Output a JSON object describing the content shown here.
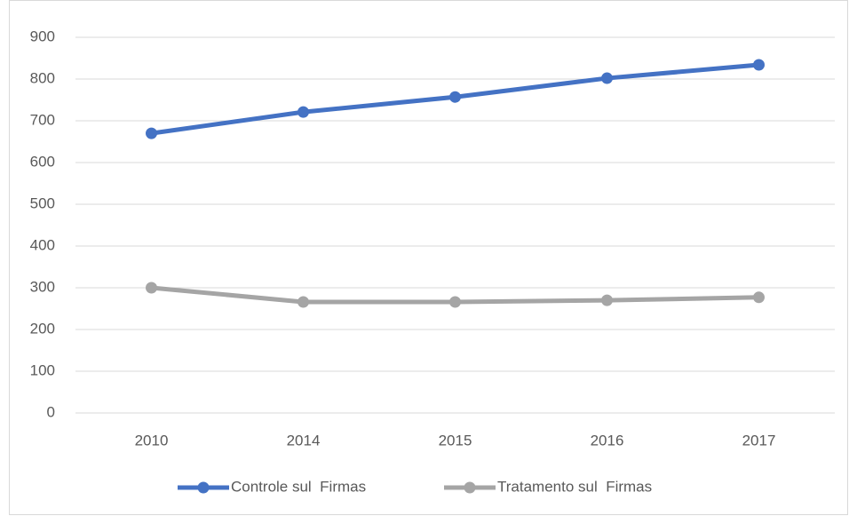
{
  "chart_data": {
    "type": "line",
    "categories": [
      "2010",
      "2014",
      "2015",
      "2016",
      "2017"
    ],
    "series": [
      {
        "name": "Controle sul  Firmas",
        "color": "#4472c4",
        "values": [
          670,
          721,
          757,
          802,
          834
        ]
      },
      {
        "name": "Tratamento sul  Firmas",
        "color": "#a5a5a5",
        "values": [
          300,
          266,
          266,
          270,
          277
        ]
      }
    ],
    "ylim": [
      0,
      900
    ],
    "yticks": [
      0,
      100,
      200,
      300,
      400,
      500,
      600,
      700,
      800,
      900
    ],
    "grid": true,
    "legend": "bottom"
  }
}
